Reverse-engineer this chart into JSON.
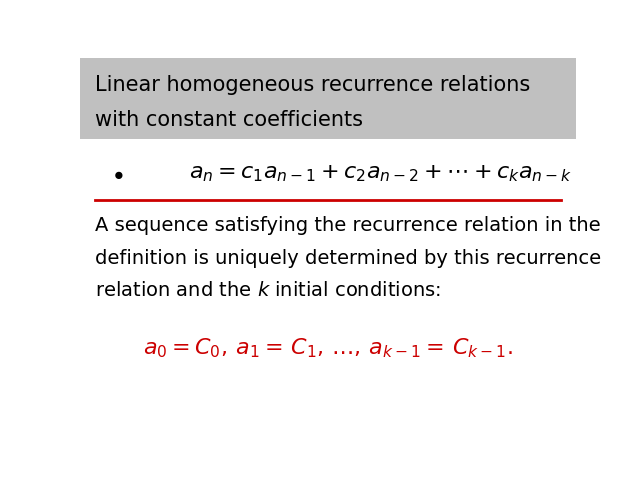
{
  "title_line1": "Linear homogeneous recurrence relations",
  "title_line2": "with constant coefficients",
  "title_bg_color": "#c0c0c0",
  "title_text_color": "#000000",
  "bullet_formula": "$a_n = c_1a_{n-1} + c_2a_{n-2} + \\cdots + c_ka_{n-k}$",
  "separator_color": "#cc0000",
  "body_text_line1": "A sequence satisfying the recurrence relation in the",
  "body_text_line2": "definition is uniquely determined by this recurrence",
  "body_text_line3": "relation and the $k$ initial conditions:",
  "conditions_formula": "$a_0 = C_0,\\, a_1 =\\, C_1,\\, \\ldots,\\, a_{k-1} =\\, C_{k-1}.$",
  "conditions_color": "#cc0000",
  "bg_color": "#ffffff",
  "body_text_color": "#000000",
  "bullet_color": "#000000",
  "title_fontsize": 15,
  "bullet_fontsize": 16,
  "body_fontsize": 14,
  "conditions_fontsize": 16
}
